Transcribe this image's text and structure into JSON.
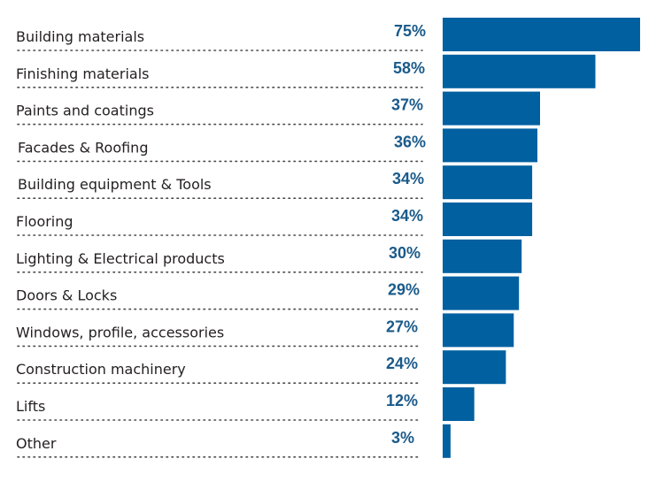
{
  "chart_data": {
    "type": "bar",
    "orientation": "horizontal",
    "title": "",
    "xlabel": "",
    "ylabel": "",
    "categories": [
      "Building materials",
      "Finishing materials",
      "Paints and coatings",
      "Facades & Roofing",
      "Building equipment & Tools",
      "Flooring",
      "Lighting & Electrical products",
      "Doors & Locks",
      "Windows, profile, accessories",
      "Construction machinery",
      "Lifts",
      "Other"
    ],
    "values": [
      75,
      58,
      37,
      36,
      34,
      34,
      30,
      29,
      27,
      24,
      12,
      3
    ],
    "value_labels": [
      "75%",
      "58%",
      "37%",
      "36%",
      "34%",
      "34%",
      "30%",
      "29%",
      "27%",
      "24%",
      "12%",
      "3%"
    ],
    "unit": "%",
    "xlim": [
      0,
      75
    ],
    "grid": false,
    "legend": "none",
    "colors": {
      "bar": "#0060a0",
      "value_label": "#1a5a8a",
      "category_label": "#231f20",
      "leader_dots": "#4a4a4a"
    }
  }
}
